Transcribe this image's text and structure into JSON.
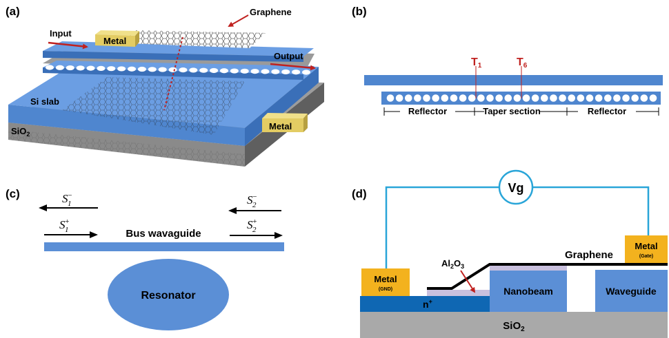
{
  "colors": {
    "slab_blue": "#4f86cf",
    "slab_top": "#6b9ee3",
    "nanobeam_blue": "#5b8fd6",
    "ring_blue": "#4a7cc6",
    "oxide_gray": "#a9a9a9",
    "oxide_dark": "#6f6f6f",
    "metal_yellow": "#e3cc63",
    "metal_gold": "#f3b21e",
    "n_doped": "#0f67b3",
    "graphene_line": "#000000",
    "al2o3": "#c9c0de",
    "wire": "#29a5d8",
    "arrow_red": "#c0211f",
    "arrow_black": "#000000"
  },
  "panel_a": {
    "label": "(a)",
    "input": "Input",
    "output": "Output",
    "graphene": "Graphene",
    "metal_top": "Metal",
    "metal_bottom": "Metal",
    "si_slab": "Si slab",
    "sio2_base": "SiO",
    "sio2_sub": "2",
    "hole_count": 26
  },
  "panel_b": {
    "label": "(b)",
    "t1_base": "T",
    "t1_sub": "1",
    "t6_base": "T",
    "t6_sub": "6",
    "reflector_left": "Reflector",
    "taper": "Taper section",
    "reflector_right": "Reflector",
    "hole_count": 30
  },
  "panel_c": {
    "label": "(c)",
    "s1_minus": "S",
    "s1_minus_sub": "1",
    "s1_minus_sup": "−",
    "s2_minus": "S",
    "s2_minus_sub": "2",
    "s2_minus_sup": "−",
    "s1_plus": "S",
    "s1_plus_sub": "1",
    "s1_plus_sup": "+",
    "s2_plus": "S",
    "s2_plus_sub": "2",
    "s2_plus_sup": "+",
    "bus": "Bus wavaguide",
    "resonator": "Resonator"
  },
  "panel_d": {
    "label": "(d)",
    "vg": "Vg",
    "metal_gnd": "Metal",
    "metal_gnd_sub": "(GND)",
    "metal_gate": "Metal",
    "metal_gate_sub": "(Gate)",
    "graphene": "Graphene",
    "al2o3_a": "Al",
    "al2o3_sub1": "2",
    "al2o3_b": "O",
    "al2o3_sub2": "3",
    "n_plus": "n",
    "n_plus_sup": "+",
    "nanobeam": "Nanobeam",
    "waveguide": "Waveguide",
    "sio2_base": "SiO",
    "sio2_sub": "2"
  }
}
